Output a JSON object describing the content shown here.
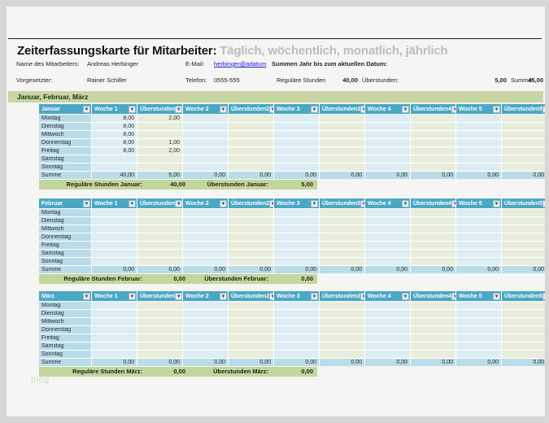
{
  "header": {
    "title_bold": "Zeiterfassungskarte für Mitarbeiter:",
    "title_light": " Täglich, wöchentlich, monatlich, jährlich"
  },
  "info": {
    "name_label": "Name des Mitarbeiters:",
    "name_value": "Andreas Herbinger",
    "email_label": "E-Mail:",
    "email_value": "herbinger@adatum",
    "summary_label": "Summen Jahr bis zum aktuellen Datum:",
    "supervisor_label": "Vorgesetzter:",
    "supervisor_value": "Rainer Schiller",
    "phone_label": "Telefon:",
    "phone_value": "0555-555",
    "regular_label": "Reguläre Stunden",
    "regular_value": "40,00",
    "overtime_label": "Überstunden:",
    "overtime_value": "5,00",
    "sum_label": "Summe:",
    "sum_value": "45,00"
  },
  "section_band": "Januar, Februar, März",
  "table": {
    "columns": [
      "Woche 1",
      "Überstunden",
      "Woche 2",
      "Überstunden2",
      "Woche 3",
      "Überstunden3",
      "Woche 4",
      "Überstunden4",
      "Woche 5",
      "Überstunden5"
    ],
    "days": [
      "Montag",
      "Dienstag",
      "Mittwoch",
      "Donnerstag",
      "Freitag",
      "Samstag",
      "Sonntag"
    ],
    "summe_label": "Summe",
    "filter_icon": "▼"
  },
  "months": [
    {
      "label": "Januar",
      "rows": [
        [
          "8,00",
          "2,00",
          "",
          "",
          "",
          "",
          "",
          "",
          "",
          ""
        ],
        [
          "8,00",
          "",
          "",
          "",
          "",
          "",
          "",
          "",
          "",
          ""
        ],
        [
          "8,00",
          "",
          "",
          "",
          "",
          "",
          "",
          "",
          "",
          ""
        ],
        [
          "8,00",
          "1,00",
          "",
          "",
          "",
          "",
          "",
          "",
          "",
          ""
        ],
        [
          "8,00",
          "2,00",
          "",
          "",
          "",
          "",
          "",
          "",
          "",
          ""
        ],
        [
          "",
          "",
          "",
          "",
          "",
          "",
          "",
          "",
          "",
          ""
        ],
        [
          "",
          "",
          "",
          "",
          "",
          "",
          "",
          "",
          "",
          ""
        ]
      ],
      "summe": [
        "40,00",
        "5,00",
        "0,00",
        "0,00",
        "0,00",
        "0,00",
        "0,00",
        "0,00",
        "0,00",
        "0,00"
      ],
      "footer": {
        "regular_label": "Reguläre Stunden Januar:",
        "regular_value": "40,00",
        "overtime_label": "Überstunden Januar:",
        "overtime_value": "5,00"
      }
    },
    {
      "label": "Februar",
      "rows": [
        [
          "",
          "",
          "",
          "",
          "",
          "",
          "",
          "",
          "",
          ""
        ],
        [
          "",
          "",
          "",
          "",
          "",
          "",
          "",
          "",
          "",
          ""
        ],
        [
          "",
          "",
          "",
          "",
          "",
          "",
          "",
          "",
          "",
          ""
        ],
        [
          "",
          "",
          "",
          "",
          "",
          "",
          "",
          "",
          "",
          ""
        ],
        [
          "",
          "",
          "",
          "",
          "",
          "",
          "",
          "",
          "",
          ""
        ],
        [
          "",
          "",
          "",
          "",
          "",
          "",
          "",
          "",
          "",
          ""
        ],
        [
          "",
          "",
          "",
          "",
          "",
          "",
          "",
          "",
          "",
          ""
        ]
      ],
      "summe": [
        "0,00",
        "0,00",
        "0,00",
        "0,00",
        "0,00",
        "0,00",
        "0,00",
        "0,00",
        "0,00",
        "0,00"
      ],
      "footer": {
        "regular_label": "Reguläre Stunden Februar:",
        "regular_value": "0,00",
        "overtime_label": "Überstunden Februar:",
        "overtime_value": "0,00"
      }
    },
    {
      "label": "März",
      "rows": [
        [
          "",
          "",
          "",
          "",
          "",
          "",
          "",
          "",
          "",
          ""
        ],
        [
          "",
          "",
          "",
          "",
          "",
          "",
          "",
          "",
          "",
          ""
        ],
        [
          "",
          "",
          "",
          "",
          "",
          "",
          "",
          "",
          "",
          ""
        ],
        [
          "",
          "",
          "",
          "",
          "",
          "",
          "",
          "",
          "",
          ""
        ],
        [
          "",
          "",
          "",
          "",
          "",
          "",
          "",
          "",
          "",
          ""
        ],
        [
          "",
          "",
          "",
          "",
          "",
          "",
          "",
          "",
          "",
          ""
        ],
        [
          "",
          "",
          "",
          "",
          "",
          "",
          "",
          "",
          "",
          ""
        ]
      ],
      "summe": [
        "0,00",
        "0,00",
        "0,00",
        "0,00",
        "0,00",
        "0,00",
        "0,00",
        "0,00",
        "0,00",
        "0,00"
      ],
      "footer": {
        "regular_label": "Reguläre Stunden März:",
        "regular_value": "0,00",
        "overtime_label": "Überstunden März:",
        "overtime_value": "0,00"
      }
    }
  ],
  "watermark": "blog",
  "colors": {
    "table_header": "#4aa8c5",
    "day_cell": "#b9dce8",
    "week_cell": "#dcedf3",
    "overtime_cell": "#e9eedc",
    "section_band": "#c8d7a1",
    "footer_band": "#c3d69b",
    "link": "#1a1adf"
  }
}
